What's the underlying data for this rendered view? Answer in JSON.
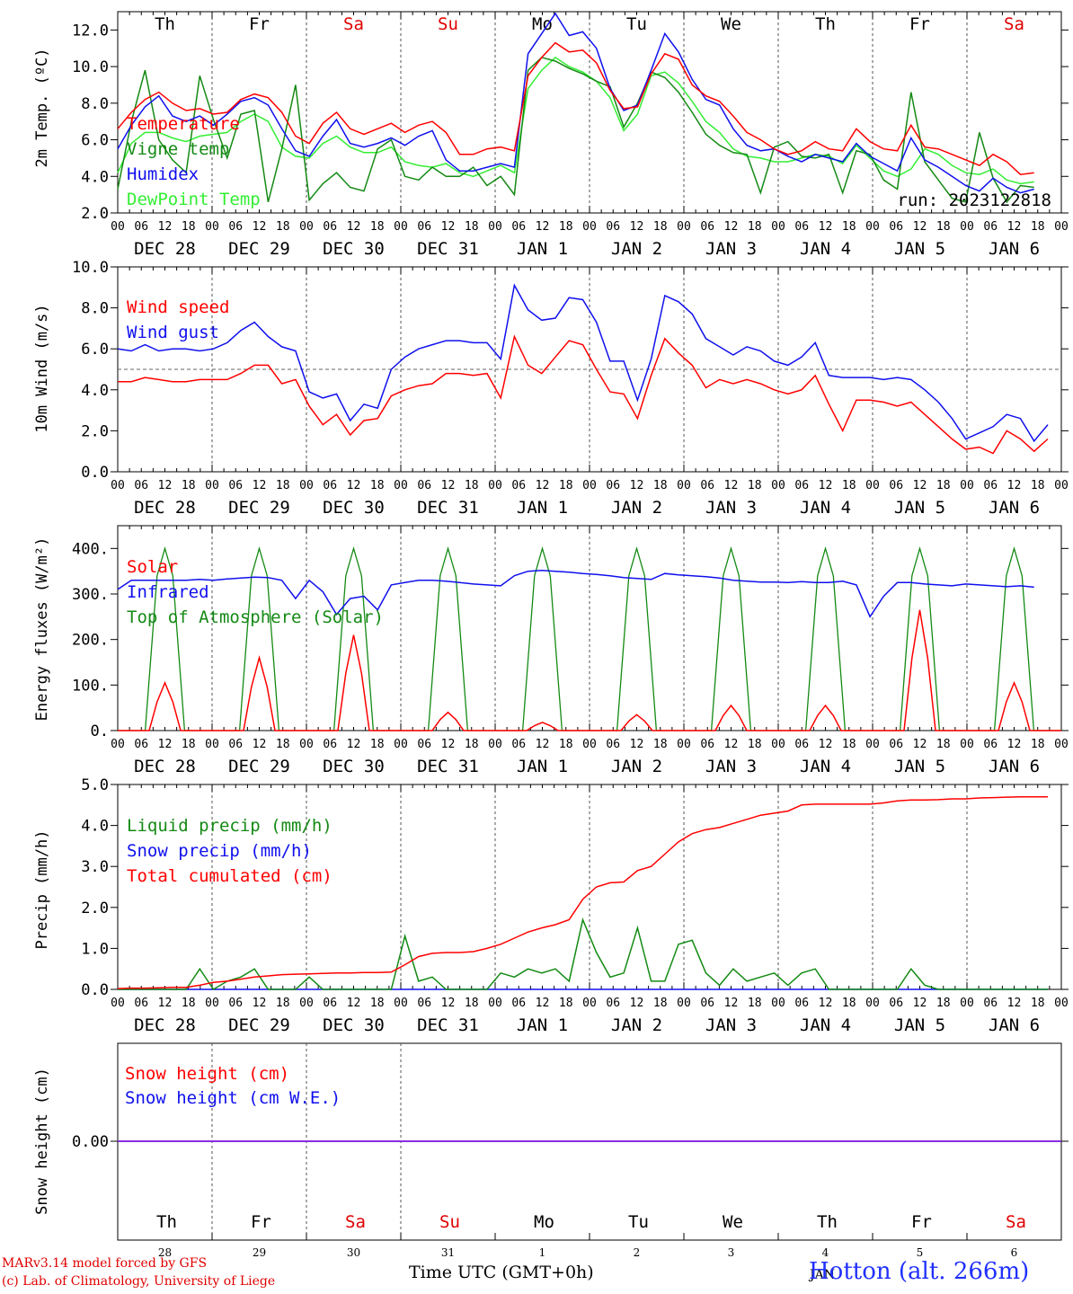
{
  "days": [
    "DEC 28",
    "DEC 29",
    "DEC 30",
    "DEC 31",
    "JAN  1",
    "JAN  2",
    "JAN  3",
    "JAN  4",
    "JAN  5",
    "JAN  6"
  ],
  "weekdays": [
    {
      "label": "Th",
      "weekend": false
    },
    {
      "label": "Fr",
      "weekend": false
    },
    {
      "label": "Sa",
      "weekend": true
    },
    {
      "label": "Su",
      "weekend": true
    },
    {
      "label": "Mo",
      "weekend": false
    },
    {
      "label": "Tu",
      "weekend": false
    },
    {
      "label": "We",
      "weekend": false
    },
    {
      "label": "Th",
      "weekend": false
    },
    {
      "label": "Fr",
      "weekend": false
    },
    {
      "label": "Sa",
      "weekend": true
    }
  ],
  "hour_ticks": [
    "00",
    "06",
    "12",
    "18"
  ],
  "final_tick": "00",
  "day_numbers": [
    "28",
    "29",
    "30",
    "31",
    "1",
    "2",
    "3",
    "4",
    "5",
    "6"
  ],
  "month_label": "JAN",
  "run_label": "run: 2023122818",
  "footer": {
    "model": "MARv3.14 model forced by GFS",
    "lab": "(c) Lab. of Climatology, University of Liege",
    "xlabel": "Time UTC (GMT+0h)",
    "station": "Hotton (alt. 266m)"
  },
  "colors": {
    "red": "#ff0000",
    "darkgreen": "#138a13",
    "blue": "#1010ee",
    "lightgreen": "#33ee33",
    "purple": "#8a2be2"
  },
  "chart_data": [
    {
      "type": "line",
      "ylabel": "2m Temp. (ºC)",
      "ylim": [
        2,
        13
      ],
      "yticks": [
        2,
        4,
        6,
        8,
        10,
        12
      ],
      "ytick_labels": [
        "2.0",
        "4.0",
        "6.0",
        "8.0",
        "10.0",
        "12.0"
      ],
      "x_unit": "hours since DEC 28 00 UTC (3-hourly)",
      "series": [
        {
          "name": "Temperature",
          "color": "red",
          "values": [
            6.6,
            7.5,
            8.2,
            8.6,
            8,
            7.6,
            7.7,
            7.4,
            7.5,
            8.2,
            8.5,
            8.3,
            7.5,
            6.2,
            5.8,
            6.9,
            7.5,
            6.6,
            6.3,
            6.6,
            6.9,
            6.4,
            6.8,
            7,
            6.4,
            5.2,
            5.2,
            5.5,
            5.6,
            5.4,
            9.5,
            10.5,
            11.3,
            10.8,
            10.9,
            10.2,
            8.7,
            7.7,
            7.8,
            9.6,
            10.7,
            10.4,
            9,
            8.4,
            8.1,
            7.3,
            6.4,
            6,
            5.5,
            5.2,
            5.4,
            5.9,
            5.5,
            5.4,
            6.6,
            5.9,
            5.5,
            5.4,
            6.8,
            5.6,
            5.5,
            5.2,
            4.9,
            4.6,
            5.2,
            4.8,
            4.1,
            4.2
          ]
        },
        {
          "name": "Vigne temp",
          "color": "darkgreen",
          "values": [
            3.3,
            7,
            9.8,
            6,
            4.9,
            4.2,
            9.5,
            7.1,
            5,
            7.4,
            7.6,
            2.6,
            5.5,
            9,
            2.7,
            3.6,
            4.2,
            3.4,
            3.2,
            5.5,
            6,
            4,
            3.8,
            4.5,
            4,
            4,
            4.5,
            3.5,
            4,
            3,
            9.8,
            10.5,
            10.3,
            9.9,
            9.6,
            9.2,
            8.9,
            6.7,
            8,
            9.7,
            9.4,
            8.6,
            7.5,
            6.3,
            5.7,
            5.3,
            5.2,
            3.1,
            5.6,
            5.9,
            5.1,
            5,
            5.2,
            3.1,
            5.4,
            5.2,
            3.8,
            3.3,
            8.6,
            4.8,
            3.8,
            2.8,
            2.6,
            6.4,
            3.9,
            2.6,
            3.5,
            3.4
          ]
        },
        {
          "name": "Humidex",
          "color": "blue",
          "values": [
            5.5,
            6.8,
            7.8,
            8.4,
            7.3,
            7,
            7.3,
            6.8,
            7.4,
            8.1,
            8.3,
            7.9,
            6.6,
            5.4,
            5.1,
            6.2,
            7.1,
            5.8,
            5.6,
            5.8,
            6.1,
            5.7,
            6.2,
            6.5,
            4.9,
            4.3,
            4.3,
            4.5,
            4.7,
            4.5,
            10.7,
            11.8,
            12.9,
            11.7,
            11.9,
            11,
            8.8,
            7.6,
            7.9,
            9.8,
            11.8,
            10.8,
            9.3,
            8.2,
            7.9,
            6.6,
            5.7,
            5.4,
            5.5,
            5.1,
            4.8,
            5.2,
            5,
            4.8,
            5.8,
            5.1,
            4.7,
            4.3,
            6.1,
            4.9,
            4.5,
            4,
            3.5,
            3.2,
            3.9,
            3.4,
            3.1,
            3.3
          ]
        },
        {
          "name": "DewPoint Temp",
          "color": "lightgreen",
          "values": [
            4.2,
            5.8,
            6.4,
            6.4,
            6.1,
            5.9,
            6.2,
            6.3,
            6.4,
            7,
            7.4,
            7,
            5.6,
            5.1,
            5,
            5.8,
            6.2,
            5.6,
            5.3,
            5.3,
            5.6,
            4.8,
            4.6,
            4.5,
            4.7,
            4.2,
            4,
            4.3,
            4.6,
            4.2,
            8.8,
            9.8,
            10.5,
            10,
            9.7,
            9.2,
            8.3,
            6.5,
            7.4,
            9.5,
            9.7,
            9.1,
            8.1,
            7,
            6.4,
            5.5,
            5.1,
            5,
            4.8,
            4.8,
            5,
            5.2,
            5.1,
            4.7,
            5.7,
            5,
            4.3,
            4,
            4.4,
            5.5,
            5.2,
            4.6,
            4.2,
            4.1,
            4.4,
            3.8,
            3.6,
            3.7
          ]
        }
      ]
    },
    {
      "type": "line",
      "ylabel": "10m Wind (m/s)",
      "ylim": [
        0,
        10
      ],
      "yticks": [
        0,
        2,
        4,
        6,
        8,
        10
      ],
      "ytick_labels": [
        "0.0",
        "2.0",
        "4.0",
        "6.0",
        "8.0",
        "10.0"
      ],
      "ref_line": 5,
      "series": [
        {
          "name": "Wind speed",
          "color": "red",
          "values": [
            4.4,
            4.4,
            4.6,
            4.5,
            4.4,
            4.4,
            4.5,
            4.5,
            4.5,
            4.8,
            5.2,
            5.2,
            4.3,
            4.5,
            3.2,
            2.3,
            2.8,
            1.8,
            2.5,
            2.6,
            3.7,
            4,
            4.2,
            4.3,
            4.8,
            4.8,
            4.7,
            4.8,
            3.6,
            6.6,
            5.2,
            4.8,
            5.6,
            6.4,
            6.2,
            5,
            3.9,
            3.8,
            2.6,
            4.7,
            6.5,
            5.8,
            5.2,
            4.1,
            4.5,
            4.3,
            4.5,
            4.3,
            4,
            3.8,
            4,
            4.7,
            3.3,
            2,
            3.5,
            3.5,
            3.4,
            3.2,
            3.4,
            2.8,
            2.2,
            1.6,
            1.1,
            1.2,
            0.9,
            2,
            1.6,
            1,
            1.6
          ]
        },
        {
          "name": "Wind gust",
          "color": "blue",
          "values": [
            6,
            5.9,
            6.2,
            5.9,
            6,
            6,
            5.9,
            6,
            6.3,
            6.9,
            7.3,
            6.6,
            6.1,
            5.9,
            3.9,
            3.6,
            3.8,
            2.5,
            3.3,
            3.1,
            5,
            5.6,
            6,
            6.2,
            6.4,
            6.4,
            6.3,
            6.3,
            5.5,
            9.1,
            7.9,
            7.4,
            7.5,
            8.5,
            8.4,
            7.3,
            5.4,
            5.4,
            3.5,
            5.5,
            8.6,
            8.3,
            7.7,
            6.5,
            6.1,
            5.7,
            6.1,
            5.9,
            5.4,
            5.2,
            5.6,
            6.3,
            4.7,
            4.6,
            4.6,
            4.6,
            4.5,
            4.6,
            4.5,
            4,
            3.4,
            2.6,
            1.6,
            1.9,
            2.2,
            2.8,
            2.6,
            1.5,
            2.3
          ]
        }
      ]
    },
    {
      "type": "line",
      "ylabel": "Energy fluxes (W/m²)",
      "ylim": [
        0,
        450
      ],
      "yticks": [
        0,
        100,
        200,
        300,
        400
      ],
      "ytick_labels": [
        "0.",
        "100.",
        "200.",
        "300.",
        "400."
      ],
      "series": [
        {
          "name": "Solar",
          "color": "red",
          "peaks": [
            105,
            160,
            210,
            40,
            18,
            35,
            55,
            55,
            265,
            105
          ]
        },
        {
          "name": "Infrared",
          "color": "blue",
          "values": [
            310,
            330,
            330,
            330,
            330,
            330,
            332,
            330,
            333,
            335,
            337,
            336,
            330,
            290,
            330,
            305,
            255,
            290,
            295,
            265,
            320,
            325,
            330,
            330,
            328,
            325,
            322,
            320,
            318,
            340,
            350,
            352,
            350,
            348,
            345,
            343,
            340,
            336,
            334,
            332,
            345,
            342,
            340,
            338,
            335,
            330,
            328,
            326,
            326,
            325,
            327,
            325,
            325,
            328,
            320,
            250,
            295,
            325,
            325,
            322,
            320,
            318,
            322,
            320,
            318,
            316,
            318,
            315
          ]
        },
        {
          "name": "Top of Atmosphere (Solar)",
          "color": "darkgreen",
          "peak": 400
        }
      ]
    },
    {
      "type": "line",
      "ylabel": "Precip (mm/h)",
      "ylim": [
        0,
        5
      ],
      "yticks": [
        0,
        1,
        2,
        3,
        4,
        5
      ],
      "ytick_labels": [
        "0.0",
        "1.0",
        "2.0",
        "3.0",
        "4.0",
        "5.0"
      ],
      "series": [
        {
          "name": "Liquid precip (mm/h)",
          "color": "darkgreen",
          "values": [
            0,
            0,
            0,
            0,
            0,
            0,
            0.5,
            0,
            0.2,
            0.3,
            0.5,
            0,
            0,
            0,
            0.3,
            0,
            0,
            0,
            0,
            0,
            0,
            1.3,
            0.2,
            0.3,
            0,
            0,
            0,
            0,
            0.4,
            0.3,
            0.5,
            0.4,
            0.5,
            0.2,
            1.7,
            0.9,
            0.3,
            0.4,
            1.5,
            0.2,
            0.2,
            1.1,
            1.2,
            0.4,
            0.1,
            0.5,
            0.2,
            0.3,
            0.4,
            0.1,
            0.4,
            0.5,
            0,
            0,
            0,
            0,
            0,
            0,
            0.5,
            0.1,
            0,
            0,
            0,
            0,
            0,
            0,
            0,
            0,
            0
          ]
        },
        {
          "name": "Snow precip (mm/h)",
          "color": "blue",
          "values": [
            0,
            0,
            0,
            0,
            0,
            0,
            0,
            0,
            0,
            0,
            0,
            0,
            0,
            0,
            0,
            0,
            0,
            0,
            0,
            0,
            0,
            0,
            0,
            0,
            0,
            0,
            0,
            0,
            0,
            0,
            0,
            0,
            0,
            0,
            0,
            0,
            0,
            0,
            0,
            0,
            0,
            0,
            0,
            0,
            0,
            0,
            0,
            0,
            0,
            0,
            0,
            0,
            0,
            0,
            0,
            0,
            0,
            0,
            0,
            0,
            0,
            0,
            0,
            0,
            0,
            0,
            0,
            0,
            0
          ]
        },
        {
          "name": "Total cumulated (cm)",
          "color": "red",
          "values": [
            0.02,
            0.03,
            0.03,
            0.04,
            0.05,
            0.05,
            0.1,
            0.17,
            0.2,
            0.25,
            0.3,
            0.33,
            0.36,
            0.37,
            0.38,
            0.39,
            0.4,
            0.4,
            0.41,
            0.41,
            0.42,
            0.6,
            0.8,
            0.88,
            0.9,
            0.9,
            0.92,
            1,
            1.1,
            1.25,
            1.4,
            1.5,
            1.58,
            1.7,
            2.2,
            2.5,
            2.6,
            2.62,
            2.9,
            3,
            3.3,
            3.6,
            3.8,
            3.9,
            3.95,
            4.05,
            4.15,
            4.25,
            4.3,
            4.35,
            4.5,
            4.52,
            4.52,
            4.52,
            4.52,
            4.52,
            4.55,
            4.6,
            4.62,
            4.62,
            4.63,
            4.65,
            4.65,
            4.67,
            4.68,
            4.69,
            4.7,
            4.7,
            4.7
          ]
        }
      ]
    },
    {
      "type": "line",
      "ylabel": "Snow height (cm)",
      "yticks": [
        0
      ],
      "ytick_labels": [
        "0.00"
      ],
      "series": [
        {
          "name": "Snow height (cm)",
          "color": "red",
          "values": [
            0,
            0
          ]
        },
        {
          "name": "Snow height (cm W.E.)",
          "color": "blue",
          "values": [
            0,
            0
          ]
        }
      ]
    }
  ]
}
